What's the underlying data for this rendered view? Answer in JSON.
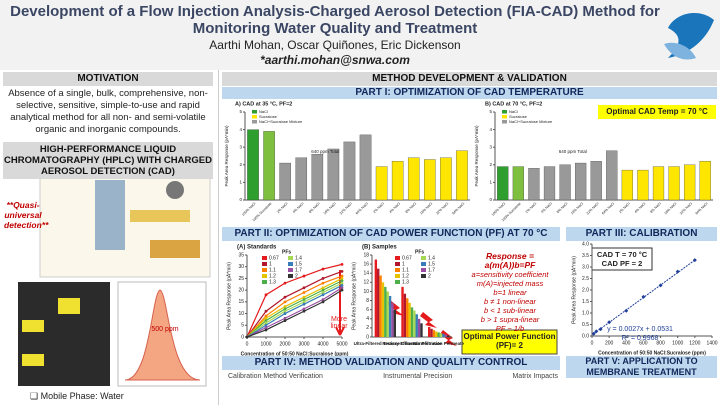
{
  "header": {
    "title": "Development of a Flow Injection Analysis-Charged Aerosol Detection (FIA-CAD) Method for Monitoring Water Quality and Treatment",
    "authors": "Aarthi Mohan, Oscar Quiñones, Eric Dickenson",
    "email": "*aarthi.mohan@snwa.com"
  },
  "motivation": {
    "heading": "MOTIVATION",
    "text": "Absence of a single, bulk, comprehensive, non-selective, sensitive, simple-to-use and rapid analytical method for all non- and semi-volatile organic and inorganic compounds."
  },
  "hplc": {
    "heading": "HIGH-PERFORMANCE LIQUID CHROMATOGRAPHY (HPLC) WITH CHARGED AEROSOL DETECTION (CAD)",
    "quote": "**Quasi-universal detection**",
    "peak_label": "500 ppm",
    "mobile_phase": "Mobile Phase: Water"
  },
  "method": {
    "heading": "METHOD DEVELOPMENT & VALIDATION"
  },
  "part1": {
    "heading": "PART I: OPTIMIZATION OF CAD TEMPERATURE",
    "callout": "Optimal CAD Temp = 70 °C",
    "legend": [
      {
        "name": "NaCl",
        "color": "#2e9e2e"
      },
      {
        "name": "Sucralose",
        "color": "#ffe600"
      },
      {
        "name": "NaCl+Sucralose Mixture",
        "color": "#999999"
      }
    ],
    "chart_a": {
      "type": "bar",
      "title": "A) CAD at 35 °C, PF=2",
      "ylabel": "Peak Area Response (pA*min)",
      "annotation": "640 ppm Total",
      "categories": [
        "100% NaCl",
        "100% Sucralose",
        "2% NaCl",
        "4% NaCl",
        "8% NaCl",
        "16% NaCl",
        "32% NaCl",
        "64% NaCl",
        "2% NaCl",
        "4% NaCl",
        "8% NaCl",
        "16% NaCl",
        "32% NaCl",
        "64% NaCl"
      ],
      "values": [
        4.0,
        3.9,
        2.1,
        2.4,
        2.6,
        2.9,
        3.3,
        3.7,
        1.9,
        2.2,
        2.4,
        2.3,
        2.4,
        2.8
      ],
      "colors": [
        "#2e9e2e",
        "#7fbf3f",
        "#999999",
        "#999999",
        "#999999",
        "#999999",
        "#999999",
        "#999999",
        "#ffe600",
        "#ffe600",
        "#ffe600",
        "#ffe600",
        "#ffe600",
        "#ffe600"
      ],
      "ylim": [
        0,
        5
      ],
      "yticks": [
        0,
        1,
        2,
        3,
        4,
        5
      ]
    },
    "chart_b": {
      "type": "bar",
      "title": "B) CAD at 70 °C, PF=2",
      "ylabel": "Peak Area Response (pA*min)",
      "annotation": "640 ppm Total",
      "categories": [
        "100% NaCl",
        "100% Sucralose",
        "2% NaCl",
        "4% NaCl",
        "8% NaCl",
        "16% NaCl",
        "32% NaCl",
        "64% NaCl",
        "2% NaCl",
        "4% NaCl",
        "8% NaCl",
        "16% NaCl",
        "32% NaCl",
        "64% NaCl"
      ],
      "values": [
        1.9,
        1.9,
        1.8,
        1.9,
        2.0,
        2.1,
        2.2,
        2.8,
        1.7,
        1.7,
        1.9,
        1.9,
        2.0,
        2.2
      ],
      "colors": [
        "#2e9e2e",
        "#7fbf3f",
        "#999999",
        "#999999",
        "#999999",
        "#999999",
        "#999999",
        "#999999",
        "#ffe600",
        "#ffe600",
        "#ffe600",
        "#ffe600",
        "#ffe600",
        "#ffe600"
      ],
      "ylim": [
        0,
        5
      ],
      "yticks": [
        0,
        1,
        2,
        3,
        4,
        5
      ]
    }
  },
  "part2": {
    "heading": "PART II: OPTIMIZATION OF CAD POWER FUNCTION (PF) AT 70 °C",
    "note": "More linear",
    "optimal": "Optimal Power Function (PF)= 2",
    "equation": [
      "Response = a(m(A))b=PF",
      "a=sensitivity coefficient",
      "m(A)=injected mass",
      "b=1 linear",
      "b ≠ 1 non-linear",
      "b < 1 sub-linear",
      "b > 1 supra-linear",
      "PF ~ 1/b"
    ],
    "chart_a": {
      "type": "line",
      "title": "(A) Standards",
      "legend_title": "PFs",
      "xlabel": "Concentration of 50:50 NaCl:Sucralose (ppm)",
      "ylabel": "Peak Area Response (pA*min)",
      "x": [
        0,
        1000,
        2000,
        3000,
        4000,
        5000
      ],
      "xlim": [
        0,
        5000
      ],
      "xticks": [
        0,
        1000,
        2000,
        3000,
        4000,
        5000
      ],
      "ylim": [
        0,
        35
      ],
      "yticks": [
        0,
        5,
        10,
        15,
        20,
        25,
        30,
        35
      ],
      "series": [
        {
          "name": "0.67",
          "color": "#e41a1c",
          "values": [
            0,
            18,
            23,
            26,
            29,
            31
          ]
        },
        {
          "name": "1",
          "color": "#b2182b",
          "values": [
            0,
            11,
            17,
            21,
            25,
            28
          ]
        },
        {
          "name": "1.1",
          "color": "#ff7f00",
          "values": [
            0,
            9,
            15,
            19,
            23,
            26
          ]
        },
        {
          "name": "1.2",
          "color": "#e6c300",
          "values": [
            0,
            8,
            13,
            17,
            21,
            25
          ]
        },
        {
          "name": "1.3",
          "color": "#4daf4a",
          "values": [
            0,
            7,
            12,
            16,
            20,
            24
          ]
        },
        {
          "name": "1.4",
          "color": "#a6d854",
          "values": [
            0,
            6,
            11,
            15,
            19,
            23
          ]
        },
        {
          "name": "1.5",
          "color": "#377eb8",
          "values": [
            0,
            5,
            10,
            14,
            18,
            22
          ]
        },
        {
          "name": "1.7",
          "color": "#984ea3",
          "values": [
            0,
            4,
            8,
            12,
            16,
            21
          ]
        },
        {
          "name": "2",
          "color": "#333333",
          "values": [
            0,
            3,
            7,
            11,
            15,
            20
          ]
        }
      ]
    },
    "chart_b": {
      "type": "bar",
      "title": "(B) Samples",
      "legend_title": "PFs",
      "ylabel": "Peak Area Response (pA*min)",
      "categories": [
        "Ultra-Filtered Tertiary Effluent",
        "Reverse Osmosis Permeate",
        "Nanofiltration Permeate"
      ],
      "ylim": [
        0,
        18
      ],
      "yticks": [
        0,
        2,
        4,
        6,
        8,
        10,
        12,
        14,
        16,
        18
      ],
      "series": [
        {
          "name": "0.67",
          "color": "#e41a1c",
          "values": [
            17,
            11,
            2.2
          ]
        },
        {
          "name": "1",
          "color": "#b2182b",
          "values": [
            15,
            9.5,
            1.8
          ]
        },
        {
          "name": "1.1",
          "color": "#ff7f00",
          "values": [
            13.5,
            8.5,
            1.5
          ]
        },
        {
          "name": "1.2",
          "color": "#e6c300",
          "values": [
            12,
            7.5,
            1.2
          ]
        },
        {
          "name": "1.3",
          "color": "#4daf4a",
          "values": [
            11,
            6.5,
            1.0
          ]
        },
        {
          "name": "1.4",
          "color": "#a6d854",
          "values": [
            10,
            5.8,
            0.8
          ]
        },
        {
          "name": "1.5",
          "color": "#377eb8",
          "values": [
            9,
            5,
            0.7
          ]
        },
        {
          "name": "1.7",
          "color": "#984ea3",
          "values": [
            7.5,
            4,
            0.5
          ]
        },
        {
          "name": "2",
          "color": "#333333",
          "values": [
            6,
            3,
            0.3
          ]
        }
      ]
    }
  },
  "part3": {
    "heading": "PART III: CALIBRATION",
    "settings": [
      "CAD T = 70 °C",
      "CAD PF = 2"
    ],
    "fit": [
      "y = 0.0027x + 0.0531",
      "R² = 0.9968"
    ],
    "chart": {
      "type": "scatter",
      "xlabel": "Concentration of 50:50 NaCl:Sucralose (ppm)",
      "ylabel": "Peak Area Response (pA*min)",
      "color": "#1f3f99",
      "x": [
        20,
        50,
        100,
        200,
        400,
        600,
        800,
        1000,
        1200
      ],
      "values": [
        0.1,
        0.2,
        0.3,
        0.6,
        1.1,
        1.7,
        2.2,
        2.8,
        3.3
      ],
      "xlim": [
        0,
        1400
      ],
      "xticks": [
        0,
        200,
        400,
        600,
        800,
        1000,
        1200,
        1400
      ],
      "ylim": [
        0,
        4
      ],
      "yticks": [
        {
          "value": 0,
          "label": "0.0"
        },
        {
          "value": 0.5,
          "label": "0.5"
        },
        {
          "value": 1,
          "label": "1.0"
        },
        {
          "value": 1.5,
          "label": "1.5"
        },
        {
          "value": 2,
          "label": "2.0"
        },
        {
          "value": 2.5,
          "label": "2.5"
        },
        {
          "value": 3,
          "label": "3.0"
        },
        {
          "value": 3.5,
          "label": "3.5"
        },
        {
          "value": 4,
          "label": "4.0"
        }
      ]
    }
  },
  "part4": {
    "heading": "PART IV: METHOD VALIDATION AND QUALITY CONTROL",
    "subheads": [
      "Calibration Method Verification",
      "Instrumental Precision",
      "Matrix Impacts"
    ]
  },
  "part5": {
    "heading": "PART V: APPLICATION TO MEMBRANE TREATMENT"
  }
}
